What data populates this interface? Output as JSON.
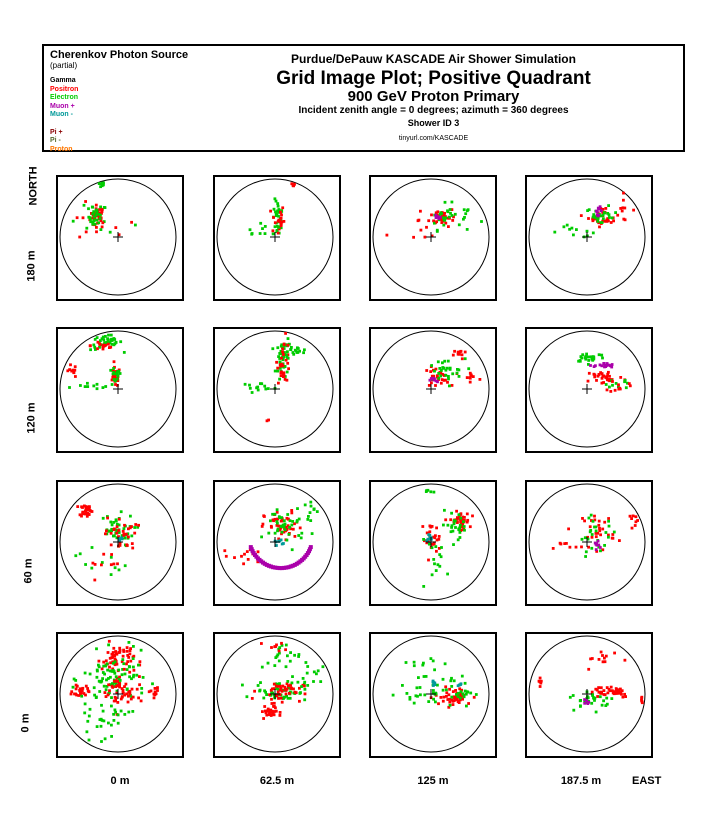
{
  "legend": {
    "title": "Cherenkov Photon Source",
    "subtitle": "(partial)",
    "items": [
      {
        "label": "Gamma",
        "color": "#000000"
      },
      {
        "label": "Positron",
        "color": "#ff0000"
      },
      {
        "label": "Electron",
        "color": "#00cc00"
      },
      {
        "label": "Muon +",
        "color": "#aa00aa"
      },
      {
        "label": "Muon -",
        "color": "#009999"
      },
      {
        "label": "",
        "color": "#eeee00"
      },
      {
        "label": "Pi +",
        "color": "#880000"
      },
      {
        "label": "Pi -",
        "color": "#556b2f"
      },
      {
        "label": "Proton",
        "color": "#ff7700"
      }
    ]
  },
  "header": {
    "line1": "Purdue/DePauw KASCADE Air Shower Simulation",
    "line2": "Grid Image Plot; Positive Quadrant",
    "line3": "900 GeV Proton Primary",
    "line4": "Incident zenith angle =  0 degrees;  azimuth =  360 degrees",
    "line5": "Shower ID 3",
    "line6": "tinyurl.com/KASCADE"
  },
  "axes": {
    "north_label": "NORTH",
    "east_label": "EAST",
    "rows": [
      "180 m",
      "120 m",
      "60 m",
      "0 m"
    ],
    "cols": [
      "0 m",
      "62.5 m",
      "125 m",
      "187.5 m"
    ]
  },
  "chart_data": {
    "type": "scatter",
    "title": "Grid Image Plot; Positive Quadrant",
    "grid": "4x4 panels; rows 0 m, 60 m, 120 m, 180 m (north); columns 0 m, 62.5 m, 125 m, 187.5 m (east)",
    "series": [
      {
        "name": "Positron",
        "color": "#ff0000"
      },
      {
        "name": "Electron",
        "color": "#00cc00"
      },
      {
        "name": "Muon +",
        "color": "#aa00aa"
      },
      {
        "name": "Muon -",
        "color": "#009999"
      }
    ],
    "panels": [
      {
        "row": "180 m",
        "col": "0 m",
        "clusters": [
          {
            "s": "Positron",
            "cx": -0.35,
            "cy": 0.35,
            "rx": 0.12,
            "ry": 0.18,
            "n": 30
          },
          {
            "s": "Electron",
            "cx": -0.35,
            "cy": 0.35,
            "rx": 0.14,
            "ry": 0.2,
            "n": 25
          },
          {
            "s": "Electron",
            "cx": -0.3,
            "cy": 0.9,
            "rx": 0.06,
            "ry": 0.04,
            "n": 8
          },
          {
            "s": "Positron",
            "cx": -0.35,
            "cy": 0.2,
            "rx": 0.6,
            "ry": 0.3,
            "n": 10
          },
          {
            "s": "Electron",
            "cx": -0.4,
            "cy": 0.3,
            "rx": 0.6,
            "ry": 0.3,
            "n": 10
          }
        ]
      },
      {
        "row": "180 m",
        "col": "62.5 m",
        "clusters": [
          {
            "s": "Electron",
            "cx": 0.05,
            "cy": 0.3,
            "rx": 0.08,
            "ry": 0.3,
            "n": 30
          },
          {
            "s": "Positron",
            "cx": 0.05,
            "cy": 0.3,
            "rx": 0.1,
            "ry": 0.25,
            "n": 20
          },
          {
            "s": "Positron",
            "cx": 0.3,
            "cy": 0.9,
            "rx": 0.05,
            "ry": 0.03,
            "n": 6
          },
          {
            "s": "Electron",
            "cx": -0.2,
            "cy": 0.15,
            "rx": 0.4,
            "ry": 0.15,
            "n": 10
          }
        ]
      },
      {
        "row": "180 m",
        "col": "125 m",
        "clusters": [
          {
            "s": "Positron",
            "cx": 0.2,
            "cy": 0.35,
            "rx": 0.2,
            "ry": 0.15,
            "n": 30
          },
          {
            "s": "Electron",
            "cx": 0.25,
            "cy": 0.35,
            "rx": 0.25,
            "ry": 0.2,
            "n": 25
          },
          {
            "s": "Muon +",
            "cx": 0.12,
            "cy": 0.35,
            "rx": 0.04,
            "ry": 0.04,
            "n": 6
          },
          {
            "s": "Positron",
            "cx": -0.2,
            "cy": 0.15,
            "rx": 0.5,
            "ry": 0.3,
            "n": 10
          },
          {
            "s": "Electron",
            "cx": 0.6,
            "cy": 0.4,
            "rx": 0.3,
            "ry": 0.15,
            "n": 8
          }
        ]
      },
      {
        "row": "180 m",
        "col": "187.5 m",
        "clusters": [
          {
            "s": "Positron",
            "cx": 0.3,
            "cy": 0.35,
            "rx": 0.25,
            "ry": 0.15,
            "n": 30
          },
          {
            "s": "Electron",
            "cx": 0.25,
            "cy": 0.35,
            "rx": 0.25,
            "ry": 0.15,
            "n": 25
          },
          {
            "s": "Muon +",
            "cx": 0.2,
            "cy": 0.45,
            "rx": 0.05,
            "ry": 0.06,
            "n": 10
          },
          {
            "s": "Electron",
            "cx": -0.2,
            "cy": 0.1,
            "rx": 0.4,
            "ry": 0.1,
            "n": 10
          },
          {
            "s": "Positron",
            "cx": 0.6,
            "cy": 0.5,
            "rx": 0.2,
            "ry": 0.2,
            "n": 8
          }
        ]
      },
      {
        "row": "120 m",
        "col": "0 m",
        "clusters": [
          {
            "s": "Electron",
            "cx": -0.2,
            "cy": 0.8,
            "rx": 0.25,
            "ry": 0.12,
            "n": 40
          },
          {
            "s": "Positron",
            "cx": -0.25,
            "cy": 0.75,
            "rx": 0.2,
            "ry": 0.1,
            "n": 15
          },
          {
            "s": "Positron",
            "cx": -0.05,
            "cy": 0.2,
            "rx": 0.08,
            "ry": 0.15,
            "n": 25
          },
          {
            "s": "Electron",
            "cx": -0.05,
            "cy": 0.2,
            "rx": 0.1,
            "ry": 0.15,
            "n": 15
          },
          {
            "s": "Positron",
            "cx": -0.8,
            "cy": 0.3,
            "rx": 0.08,
            "ry": 0.1,
            "n": 10
          },
          {
            "s": "Electron",
            "cx": -0.4,
            "cy": 0.05,
            "rx": 0.3,
            "ry": 0.05,
            "n": 10
          }
        ]
      },
      {
        "row": "120 m",
        "col": "62.5 m",
        "clusters": [
          {
            "s": "Electron",
            "cx": 0.15,
            "cy": 0.5,
            "rx": 0.12,
            "ry": 0.35,
            "n": 45
          },
          {
            "s": "Positron",
            "cx": 0.15,
            "cy": 0.5,
            "rx": 0.1,
            "ry": 0.35,
            "n": 30
          },
          {
            "s": "Electron",
            "cx": 0.35,
            "cy": 0.65,
            "rx": 0.2,
            "ry": 0.08,
            "n": 15
          },
          {
            "s": "Electron",
            "cx": -0.3,
            "cy": 0.05,
            "rx": 0.3,
            "ry": 0.05,
            "n": 12
          },
          {
            "s": "Positron",
            "cx": -0.1,
            "cy": -0.55,
            "rx": 0.03,
            "ry": 0.03,
            "n": 2
          }
        ]
      },
      {
        "row": "120 m",
        "col": "125 m",
        "clusters": [
          {
            "s": "Positron",
            "cx": 0.1,
            "cy": 0.2,
            "rx": 0.2,
            "ry": 0.15,
            "n": 30
          },
          {
            "s": "Electron",
            "cx": 0.2,
            "cy": 0.3,
            "rx": 0.35,
            "ry": 0.2,
            "n": 30
          },
          {
            "s": "Muon +",
            "cx": 0.05,
            "cy": 0.15,
            "rx": 0.06,
            "ry": 0.05,
            "n": 8
          },
          {
            "s": "Positron",
            "cx": 0.5,
            "cy": 0.6,
            "rx": 0.1,
            "ry": 0.08,
            "n": 10
          },
          {
            "s": "Positron",
            "cx": 0.7,
            "cy": 0.2,
            "rx": 0.15,
            "ry": 0.15,
            "n": 10
          }
        ]
      },
      {
        "row": "120 m",
        "col": "187.5 m",
        "clusters": [
          {
            "s": "Positron",
            "cx": 0.3,
            "cy": 0.2,
            "rx": 0.3,
            "ry": 0.12,
            "n": 30
          },
          {
            "s": "Electron",
            "cx": 0.05,
            "cy": 0.55,
            "rx": 0.25,
            "ry": 0.08,
            "n": 25
          },
          {
            "s": "Muon +",
            "cx": 0.3,
            "cy": 0.4,
            "rx": 0.15,
            "ry": 0.04,
            "n": 20
          },
          {
            "s": "Electron",
            "cx": 0.5,
            "cy": 0.1,
            "rx": 0.3,
            "ry": 0.1,
            "n": 10
          },
          {
            "s": "Positron",
            "cx": 0.55,
            "cy": 0.05,
            "rx": 0.15,
            "ry": 0.1,
            "n": 10
          }
        ]
      },
      {
        "row": "60 m",
        "col": "0 m",
        "clusters": [
          {
            "s": "Positron",
            "cx": -0.55,
            "cy": 0.55,
            "rx": 0.1,
            "ry": 0.1,
            "n": 30
          },
          {
            "s": "Electron",
            "cx": -0.05,
            "cy": 0.2,
            "rx": 0.3,
            "ry": 0.25,
            "n": 40
          },
          {
            "s": "Positron",
            "cx": 0.05,
            "cy": 0.15,
            "rx": 0.25,
            "ry": 0.25,
            "n": 30
          },
          {
            "s": "Muon -",
            "cx": 0.05,
            "cy": 0.05,
            "rx": 0.03,
            "ry": 0.03,
            "n": 4
          },
          {
            "s": "Electron",
            "cx": -0.3,
            "cy": -0.3,
            "rx": 0.4,
            "ry": 0.3,
            "n": 12
          },
          {
            "s": "Positron",
            "cx": -0.3,
            "cy": -0.35,
            "rx": 0.4,
            "ry": 0.25,
            "n": 10
          }
        ]
      },
      {
        "row": "60 m",
        "col": "62.5 m",
        "clusters": [
          {
            "s": "Positron",
            "cx": 0.15,
            "cy": 0.25,
            "rx": 0.3,
            "ry": 0.25,
            "n": 45
          },
          {
            "s": "Electron",
            "cx": 0.2,
            "cy": 0.3,
            "rx": 0.35,
            "ry": 0.3,
            "n": 40
          },
          {
            "s": "Muon -",
            "cx": 0.05,
            "cy": 0.0,
            "rx": 0.08,
            "ry": 0.05,
            "n": 8
          },
          {
            "s": "Positron",
            "cx": -0.5,
            "cy": -0.25,
            "rx": 0.35,
            "ry": 0.15,
            "n": 12
          },
          {
            "s": "Electron",
            "cx": 0.65,
            "cy": 0.6,
            "rx": 0.1,
            "ry": 0.2,
            "n": 10
          }
        ],
        "arc": {
          "s": "Muon +",
          "cx": 0.1,
          "cy": 0.1,
          "r": 0.55,
          "a0": 200,
          "a1": 340
        }
      },
      {
        "row": "60 m",
        "col": "125 m",
        "clusters": [
          {
            "s": "Positron",
            "cx": 0.5,
            "cy": 0.35,
            "rx": 0.15,
            "ry": 0.15,
            "n": 35
          },
          {
            "s": "Electron",
            "cx": 0.45,
            "cy": 0.3,
            "rx": 0.25,
            "ry": 0.2,
            "n": 25
          },
          {
            "s": "Positron",
            "cx": 0.0,
            "cy": 0.05,
            "rx": 0.15,
            "ry": 0.25,
            "n": 25
          },
          {
            "s": "Muon -",
            "cx": 0.0,
            "cy": 0.05,
            "rx": 0.06,
            "ry": 0.1,
            "n": 10
          },
          {
            "s": "Electron",
            "cx": 0.1,
            "cy": -0.3,
            "rx": 0.3,
            "ry": 0.3,
            "n": 15
          },
          {
            "s": "Electron",
            "cx": 0.0,
            "cy": 0.85,
            "rx": 0.1,
            "ry": 0.05,
            "n": 5
          }
        ]
      },
      {
        "row": "60 m",
        "col": "187.5 m",
        "clusters": [
          {
            "s": "Positron",
            "cx": 0.2,
            "cy": 0.2,
            "rx": 0.25,
            "ry": 0.3,
            "n": 30
          },
          {
            "s": "Electron",
            "cx": 0.15,
            "cy": 0.1,
            "rx": 0.35,
            "ry": 0.3,
            "n": 25
          },
          {
            "s": "Muon +",
            "cx": 0.2,
            "cy": -0.05,
            "rx": 0.06,
            "ry": 0.05,
            "n": 8
          },
          {
            "s": "Positron",
            "cx": 0.8,
            "cy": 0.4,
            "rx": 0.1,
            "ry": 0.25,
            "n": 10
          },
          {
            "s": "Positron",
            "cx": -0.4,
            "cy": -0.05,
            "rx": 0.3,
            "ry": 0.05,
            "n": 6
          }
        ]
      },
      {
        "row": "0 m",
        "col": "0 m",
        "clusters": [
          {
            "s": "Positron",
            "cx": 0.0,
            "cy": 0.6,
            "rx": 0.25,
            "ry": 0.25,
            "n": 60
          },
          {
            "s": "Electron",
            "cx": -0.05,
            "cy": 0.25,
            "rx": 0.5,
            "ry": 0.4,
            "n": 90
          },
          {
            "s": "Positron",
            "cx": 0.05,
            "cy": 0.0,
            "rx": 0.35,
            "ry": 0.3,
            "n": 50
          },
          {
            "s": "Positron",
            "cx": -0.65,
            "cy": 0.05,
            "rx": 0.12,
            "ry": 0.1,
            "n": 25
          },
          {
            "s": "Electron",
            "cx": -0.3,
            "cy": -0.45,
            "rx": 0.4,
            "ry": 0.3,
            "n": 30
          },
          {
            "s": "Positron",
            "cx": 0.65,
            "cy": 0.05,
            "rx": 0.15,
            "ry": 0.08,
            "n": 10
          }
        ]
      },
      {
        "row": "0 m",
        "col": "62.5 m",
        "clusters": [
          {
            "s": "Electron",
            "cx": 0.1,
            "cy": 0.05,
            "rx": 0.4,
            "ry": 0.15,
            "n": 50
          },
          {
            "s": "Positron",
            "cx": 0.1,
            "cy": 0.05,
            "rx": 0.35,
            "ry": 0.15,
            "n": 40
          },
          {
            "s": "Positron",
            "cx": -0.1,
            "cy": -0.3,
            "rx": 0.12,
            "ry": 0.12,
            "n": 30
          },
          {
            "s": "Electron",
            "cx": 0.1,
            "cy": 0.6,
            "rx": 0.3,
            "ry": 0.25,
            "n": 20
          },
          {
            "s": "Electron",
            "cx": 0.55,
            "cy": 0.25,
            "rx": 0.25,
            "ry": 0.2,
            "n": 15
          },
          {
            "s": "Positron",
            "cx": 0.05,
            "cy": 0.8,
            "rx": 0.2,
            "ry": 0.08,
            "n": 8
          }
        ]
      },
      {
        "row": "0 m",
        "col": "125 m",
        "clusters": [
          {
            "s": "Positron",
            "cx": 0.4,
            "cy": -0.05,
            "rx": 0.3,
            "ry": 0.15,
            "n": 45
          },
          {
            "s": "Electron",
            "cx": 0.35,
            "cy": 0.05,
            "rx": 0.35,
            "ry": 0.25,
            "n": 35
          },
          {
            "s": "Muon -",
            "cx": 0.05,
            "cy": 0.2,
            "rx": 0.04,
            "ry": 0.04,
            "n": 6
          },
          {
            "s": "Muon -",
            "cx": 0.5,
            "cy": 0.15,
            "rx": 0.04,
            "ry": 0.04,
            "n": 4
          },
          {
            "s": "Electron",
            "cx": -0.3,
            "cy": 0.05,
            "rx": 0.35,
            "ry": 0.2,
            "n": 15
          },
          {
            "s": "Electron",
            "cx": 0.0,
            "cy": 0.5,
            "rx": 0.3,
            "ry": 0.15,
            "n": 10
          }
        ]
      },
      {
        "row": "0 m",
        "col": "187.5 m",
        "clusters": [
          {
            "s": "Positron",
            "cx": 0.4,
            "cy": 0.05,
            "rx": 0.35,
            "ry": 0.1,
            "n": 40
          },
          {
            "s": "Electron",
            "cx": 0.1,
            "cy": -0.1,
            "rx": 0.35,
            "ry": 0.15,
            "n": 30
          },
          {
            "s": "Muon +",
            "cx": 0.0,
            "cy": -0.15,
            "rx": 0.04,
            "ry": 0.05,
            "n": 6
          },
          {
            "s": "Positron",
            "cx": 0.3,
            "cy": 0.6,
            "rx": 0.3,
            "ry": 0.15,
            "n": 12
          },
          {
            "s": "Positron",
            "cx": -0.8,
            "cy": 0.2,
            "rx": 0.04,
            "ry": 0.12,
            "n": 6
          },
          {
            "s": "Positron",
            "cx": 0.95,
            "cy": -0.1,
            "rx": 0.04,
            "ry": 0.08,
            "n": 6
          }
        ]
      }
    ]
  }
}
